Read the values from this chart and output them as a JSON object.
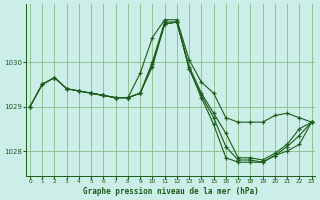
{
  "title": "Graphe pression niveau de la mer (hPa)",
  "background_color": "#cceee8",
  "grid_color": "#88bb88",
  "line_color": "#1a5c1a",
  "marker": "+",
  "xlim": [
    -0.3,
    23.3
  ],
  "ylim": [
    1027.45,
    1031.3
  ],
  "yticks": [
    1028,
    1029,
    1030
  ],
  "xticks": [
    0,
    1,
    2,
    3,
    4,
    5,
    6,
    7,
    8,
    9,
    10,
    11,
    12,
    13,
    14,
    15,
    16,
    17,
    18,
    19,
    20,
    21,
    22,
    23
  ],
  "series": [
    {
      "x": [
        0,
        1,
        2,
        3,
        4,
        5,
        6,
        7,
        8,
        9,
        10,
        11,
        12,
        13,
        14,
        15,
        16,
        17,
        18,
        19,
        20,
        21,
        22,
        23
      ],
      "y": [
        1029.0,
        1029.5,
        1029.65,
        1029.4,
        1029.35,
        1029.3,
        1029.25,
        1029.2,
        1029.2,
        1029.75,
        1030.55,
        1030.95,
        1030.95,
        1030.05,
        1029.55,
        1029.3,
        1028.75,
        1028.65,
        1028.65,
        1028.65,
        1028.8,
        1028.85,
        1028.75,
        1028.65
      ]
    },
    {
      "x": [
        5,
        6,
        7,
        8,
        9,
        10,
        11,
        12,
        13,
        14,
        15,
        16,
        17,
        18,
        19,
        20,
        21,
        22,
        23
      ],
      "y": [
        1029.3,
        1029.25,
        1029.2,
        1029.2,
        1029.3,
        1030.0,
        1030.9,
        1030.9,
        1029.9,
        1029.3,
        1028.85,
        1028.4,
        1027.85,
        1027.85,
        1027.8,
        1027.95,
        1028.15,
        1028.5,
        1028.65
      ]
    },
    {
      "x": [
        0,
        1,
        2,
        3,
        4,
        5,
        6,
        7,
        8,
        9,
        10,
        11,
        12,
        13,
        14,
        15,
        16,
        17,
        18,
        19,
        20,
        21,
        22,
        23
      ],
      "y": [
        1029.0,
        1029.5,
        1029.65,
        1029.4,
        1029.35,
        1029.3,
        1029.25,
        1029.2,
        1029.2,
        1029.3,
        1029.95,
        1030.85,
        1030.9,
        1029.85,
        1029.25,
        1028.75,
        1028.1,
        1027.8,
        1027.8,
        1027.75,
        1027.9,
        1028.1,
        1028.35,
        1028.65
      ]
    },
    {
      "x": [
        0,
        1,
        2,
        3,
        4,
        5,
        6,
        7,
        8,
        9,
        10,
        11,
        12,
        13,
        14,
        15,
        16,
        17,
        18,
        19,
        20,
        21,
        22,
        23
      ],
      "y": [
        1029.0,
        1029.5,
        1029.65,
        1029.4,
        1029.35,
        1029.3,
        1029.25,
        1029.2,
        1029.2,
        1029.3,
        1029.9,
        1030.85,
        1030.9,
        1029.85,
        1029.2,
        1028.6,
        1027.85,
        1027.75,
        1027.75,
        1027.75,
        1027.9,
        1028.0,
        1028.15,
        1028.65
      ]
    }
  ]
}
